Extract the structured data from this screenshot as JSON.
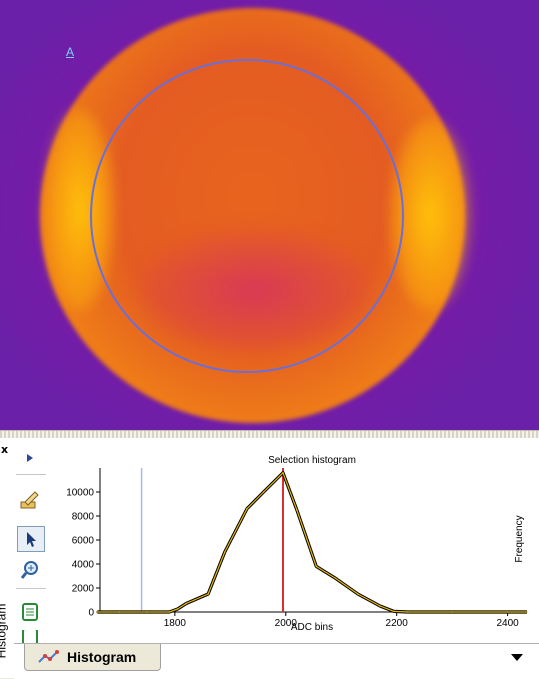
{
  "image": {
    "marker_label": "A",
    "roi_color": "#6a6fd8"
  },
  "panel": {
    "vertical_tab_label": "Histogram",
    "close_symbol": "x",
    "tools": [
      "expand-arrow-icon",
      "edit-pencil-icon",
      "select-cursor-icon",
      "zoom-icon",
      "report-icon",
      "report2-icon"
    ],
    "bottom_tab": {
      "label": "Histogram",
      "icon": "histogram-icon"
    },
    "dropdown_icon": "chevron-down-icon"
  },
  "chart_data": {
    "type": "line",
    "title": "Selection histogram",
    "xlabel": "ADC bins",
    "ylabel": "Frequency",
    "xlim": [
      1665,
      2435
    ],
    "ylim": [
      0,
      12000
    ],
    "xticks": [
      1800,
      2000,
      2200,
      2400
    ],
    "yticks": [
      0,
      2000,
      4000,
      6000,
      8000,
      10000
    ],
    "series": [
      {
        "color": "#e8b800",
        "x": [
          1660,
          1700,
          1750,
          1790,
          1805,
          1820,
          1835,
          1860,
          1890,
          1930,
          1960,
          1995,
          2020,
          2055,
          2090,
          2130,
          2170,
          2195,
          2220,
          2300,
          2400,
          2435
        ],
        "y": [
          0,
          0,
          0,
          0,
          250,
          700,
          1000,
          1500,
          5000,
          8600,
          10000,
          11600,
          8500,
          3800,
          2800,
          1500,
          500,
          50,
          0,
          0,
          0,
          0
        ]
      }
    ],
    "markers": [
      {
        "x": 1740,
        "color": "#a8b8e8"
      },
      {
        "x": 1995,
        "color": "#d83030"
      }
    ]
  }
}
